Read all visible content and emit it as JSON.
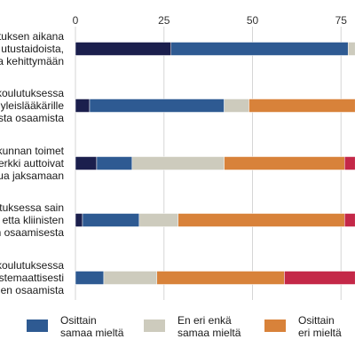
{
  "chart_data": {
    "type": "bar",
    "orientation": "horizontal",
    "stacked": true,
    "title": "",
    "xlabel": "",
    "ylabel": "",
    "xlim": [
      0,
      100
    ],
    "xticks": [
      "0",
      "25",
      "50",
      "75"
    ],
    "grid": true,
    "legend_position": "bottom",
    "categories": [
      [
        "utuksen aikana",
        "utustaidoista,",
        "a kehittymään"
      ],
      [
        "koulutuksessa",
        "yleislääkärille",
        "sta osaamista"
      ],
      [
        "kunnan toimet",
        "erkki auttoivat",
        "ua jaksamaan"
      ],
      [
        "utuksessa sain",
        "etta kliinisten",
        "n osaamisesta"
      ],
      [
        "koulutuksessa",
        "stemaattisesti",
        "jen osaamista"
      ]
    ],
    "series": [
      {
        "name": "",
        "color": "#1b1f4d",
        "values": [
          27,
          4,
          6,
          2,
          0
        ]
      },
      {
        "name": "Osittain samaa mieltä",
        "color": "#2e5a92",
        "values": [
          50,
          38,
          10,
          16,
          8
        ]
      },
      {
        "name": "En eri enkä samaa mieltä",
        "color": "#cdcbbd",
        "values": [
          2,
          7,
          26,
          11,
          15
        ]
      },
      {
        "name": "Osittain eri mieltä",
        "color": "#d8823a",
        "values": [
          0,
          30,
          34,
          47,
          36
        ]
      },
      {
        "name": "",
        "color": "#c42848",
        "values": [
          0,
          0,
          3,
          3,
          20
        ]
      }
    ]
  },
  "legend": [
    {
      "label_line1": "Osittain",
      "label_line2": "samaa mieltä",
      "color": "#2e5a92"
    },
    {
      "label_line1": "En eri enkä",
      "label_line2": "samaa mieltä",
      "color": "#cdcbbd"
    },
    {
      "label_line1": "Osittain",
      "label_line2": "eri mieltä",
      "color": "#d8823a"
    }
  ]
}
